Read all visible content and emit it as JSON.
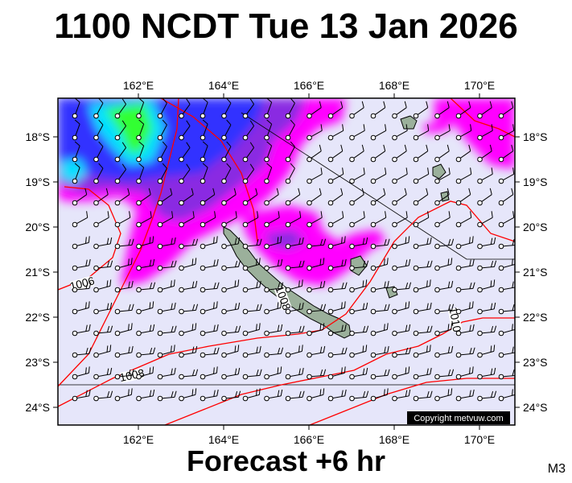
{
  "header": {
    "title": "1100 NCDT Tue 13 Jan 2026"
  },
  "footer": {
    "forecast": "Forecast +6 hr",
    "model": "M3"
  },
  "map": {
    "copyright": "Copyright metvuw.com",
    "lon_ticks": [
      "162°E",
      "164°E",
      "166°E",
      "168°E",
      "170°E"
    ],
    "lat_ticks": [
      "18°S",
      "19°S",
      "20°S",
      "21°S",
      "22°S",
      "23°S",
      "24°S"
    ],
    "isobar_labels": [
      "1006",
      "1008",
      "1008",
      "1010"
    ],
    "colors": {
      "background": "#e6e6fa",
      "rain_light": "#ff00ff",
      "rain_medium": "#8a2be2",
      "rain_heavy": "#3333ff",
      "rain_very_heavy": "#00e0ff",
      "rain_extreme": "#33ff33",
      "isobar": "#ff0000",
      "land": "#8aa08a"
    }
  }
}
